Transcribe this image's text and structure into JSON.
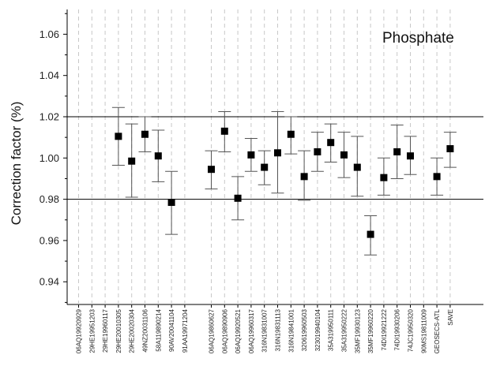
{
  "chart_data": {
    "type": "scatter",
    "title": "",
    "annotation": "Phosphate",
    "xlabel": "",
    "ylabel": "Correction factor (%)",
    "ylim": [
      0.929,
      1.072
    ],
    "yticks": [
      "0.94",
      "0.96",
      "0.98",
      "1.00",
      "1.02",
      "1.04",
      "1.06"
    ],
    "reference_lines": [
      0.98,
      1.02
    ],
    "grid": "vertical dashed lines at each category",
    "categories": [
      "06AQ19920929",
      "29HE19951203",
      "29HE19960117",
      "29HE20010305",
      "29HE20020304",
      "49NZ20031106",
      "58A119890214",
      "90AV20041104",
      "91AA19971204",
      "",
      "06AQ19860627",
      "06AQ19890906",
      "06AQ19920521",
      "06AQ19960317",
      "316N19831007",
      "316N19831113",
      "316N19841001",
      "320619960503",
      "323019940104",
      "35A319950111",
      "35A319950222",
      "35MF19930123",
      "35MF19960220",
      "74DI19921222",
      "74DI19930206",
      "74JC19950320",
      "90MS19811009",
      "GEOSECS-ATL",
      "SAVE"
    ],
    "series": [
      {
        "values": [
          null,
          null,
          null,
          1.0105,
          0.9985,
          1.0115,
          1.001,
          0.9785,
          null,
          null,
          0.9945,
          1.013,
          0.9805,
          1.0015,
          0.9955,
          1.0025,
          1.0115,
          0.991,
          1.003,
          1.0075,
          1.0015,
          0.9955,
          0.963,
          0.9905,
          1.003,
          1.001,
          null,
          0.991,
          1.0045
        ],
        "err_lower": [
          null,
          null,
          null,
          0.9965,
          0.981,
          1.003,
          0.9885,
          0.963,
          null,
          null,
          0.985,
          1.003,
          0.97,
          0.9935,
          0.987,
          0.983,
          1.002,
          0.9795,
          0.9935,
          0.998,
          0.9905,
          0.9815,
          0.953,
          0.982,
          0.99,
          0.992,
          null,
          0.982,
          0.9955
        ],
        "err_upper": [
          null,
          null,
          null,
          1.0245,
          1.0165,
          1.02,
          1.0135,
          0.9935,
          null,
          null,
          1.0035,
          1.0225,
          0.991,
          1.0095,
          1.0035,
          1.0225,
          1.02,
          1.0035,
          1.0125,
          1.0165,
          1.0125,
          1.0105,
          0.972,
          1.0,
          1.016,
          1.0105,
          null,
          1.0,
          1.0125
        ]
      }
    ]
  }
}
